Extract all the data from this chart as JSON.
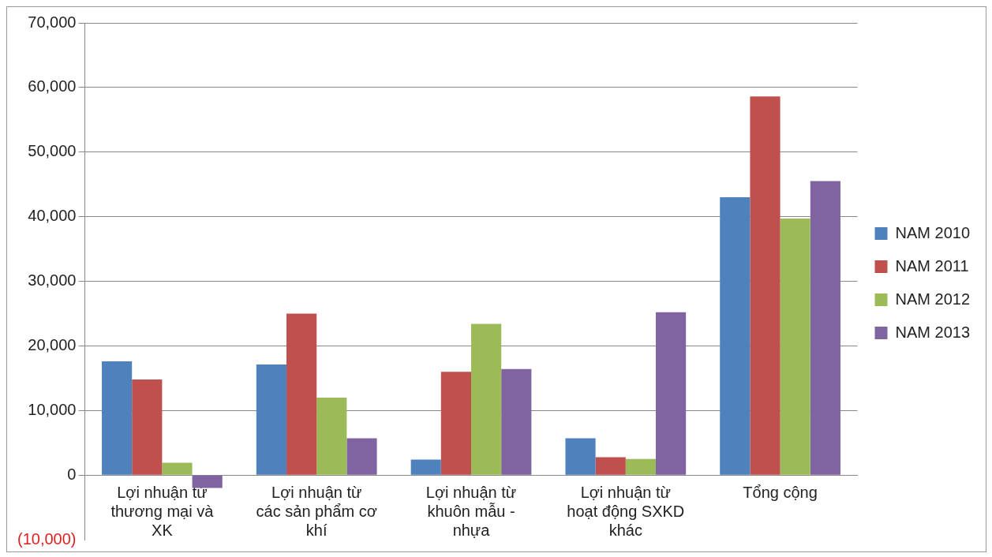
{
  "chart_data": {
    "type": "bar",
    "categories": [
      "Lợi nhuận từ thương mại và XK",
      "Lợi nhuận từ các sản phẩm cơ khí",
      "Lợi nhuận từ khuôn mẫu - nhựa",
      "Lợi nhuận từ hoạt động SXKD khác",
      "Tổng cộng"
    ],
    "series": [
      {
        "name": "NAM 2010",
        "color": "#4f81bd",
        "values": [
          17600,
          17100,
          2400,
          5700,
          43000
        ]
      },
      {
        "name": "NAM 2011",
        "color": "#c0504d",
        "values": [
          14800,
          25000,
          16000,
          2750,
          58600
        ]
      },
      {
        "name": "NAM 2012",
        "color": "#9bbb59",
        "values": [
          1900,
          12000,
          23400,
          2500,
          39700
        ]
      },
      {
        "name": "NAM 2013",
        "color": "#8064a2",
        "values": [
          -2000,
          5700,
          16400,
          25200,
          45500
        ]
      }
    ],
    "ylim": [
      -10000,
      70000
    ],
    "yticks": [
      {
        "value": -10000,
        "label": "(10,000)"
      },
      {
        "value": 0,
        "label": "0"
      },
      {
        "value": 10000,
        "label": "10,000"
      },
      {
        "value": 20000,
        "label": "20,000"
      },
      {
        "value": 30000,
        "label": "30,000"
      },
      {
        "value": 40000,
        "label": "40,000"
      },
      {
        "value": 50000,
        "label": "50,000"
      },
      {
        "value": 60000,
        "label": "60,000"
      },
      {
        "value": 70000,
        "label": "70,000"
      }
    ],
    "grid": "y",
    "legend": "right"
  }
}
